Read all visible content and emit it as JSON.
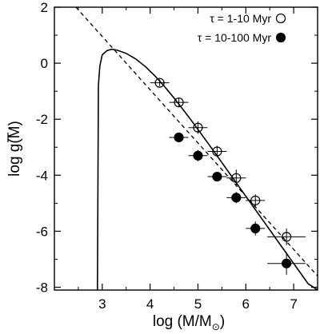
{
  "chart_data": {
    "type": "scatter",
    "xlabel": "log (M/M",
    "xlabel_sub": "⊙",
    "xlabel_end": ")",
    "ylabel": "log g(M)",
    "xlim": [
      2.0,
      7.5
    ],
    "ylim": [
      -8.1,
      2.0
    ],
    "x_ticks": [
      3,
      4,
      5,
      6,
      7
    ],
    "x_tick_labels": [
      "3",
      "4",
      "5",
      "6",
      "7"
    ],
    "y_ticks": [
      2,
      0,
      -2,
      -4,
      -6,
      -8
    ],
    "y_tick_labels": [
      "2",
      "0",
      "-2",
      "-4",
      "-6",
      "-8"
    ],
    "grid": false,
    "legend_position": "top-right",
    "series": [
      {
        "name": "τ = 1-10 Myr",
        "marker": "open-circle",
        "points": [
          {
            "x": 4.2,
            "y": -0.7,
            "xerr": 0.2,
            "yerr": 0.12
          },
          {
            "x": 4.6,
            "y": -1.4,
            "xerr": 0.2,
            "yerr": 0.15
          },
          {
            "x": 5.0,
            "y": -2.3,
            "xerr": 0.2,
            "yerr": 0.22
          },
          {
            "x": 5.4,
            "y": -3.15,
            "xerr": 0.2,
            "yerr": 0.2
          },
          {
            "x": 5.8,
            "y": -4.1,
            "xerr": 0.2,
            "yerr": 0.3
          },
          {
            "x": 6.2,
            "y": -4.9,
            "xerr": 0.2,
            "yerr": 0.22
          },
          {
            "x": 6.85,
            "y": -6.2,
            "xerr": 0.4,
            "yerr": 0.3
          }
        ]
      },
      {
        "name": "τ = 10-100 Myr",
        "marker": "filled-circle",
        "points": [
          {
            "x": 4.6,
            "y": -2.65,
            "xerr": 0.2,
            "yerr": 0.15
          },
          {
            "x": 5.0,
            "y": -3.3,
            "xerr": 0.2,
            "yerr": 0.2
          },
          {
            "x": 5.4,
            "y": -4.05,
            "xerr": 0.2,
            "yerr": 0.15
          },
          {
            "x": 5.8,
            "y": -4.8,
            "xerr": 0.2,
            "yerr": 0.2
          },
          {
            "x": 6.2,
            "y": -5.9,
            "xerr": 0.2,
            "yerr": 0.25
          },
          {
            "x": 6.85,
            "y": -7.15,
            "xerr": 0.4,
            "yerr": 0.4
          }
        ]
      }
    ],
    "curves": [
      {
        "style": "solid",
        "x": [
          2.9,
          2.92,
          2.95,
          3.0,
          3.1,
          3.2,
          3.3,
          3.5,
          3.7,
          3.9,
          4.1,
          4.3,
          4.5,
          4.7,
          4.9,
          5.1,
          5.3,
          5.5,
          5.7,
          5.9,
          6.1,
          6.3,
          6.5,
          6.7,
          6.9,
          7.1,
          7.3,
          7.5
        ],
        "y": [
          -8.1,
          -0.8,
          -0.1,
          0.3,
          0.45,
          0.5,
          0.47,
          0.35,
          0.15,
          -0.12,
          -0.45,
          -0.83,
          -1.24,
          -1.68,
          -2.13,
          -2.6,
          -3.07,
          -3.55,
          -4.03,
          -4.51,
          -4.99,
          -5.47,
          -5.95,
          -6.43,
          -6.91,
          -7.39,
          -7.87,
          -8.1
        ]
      },
      {
        "style": "dashed",
        "x": [
          2.45,
          7.5
        ],
        "y": [
          2.0,
          -7.6
        ]
      }
    ]
  }
}
